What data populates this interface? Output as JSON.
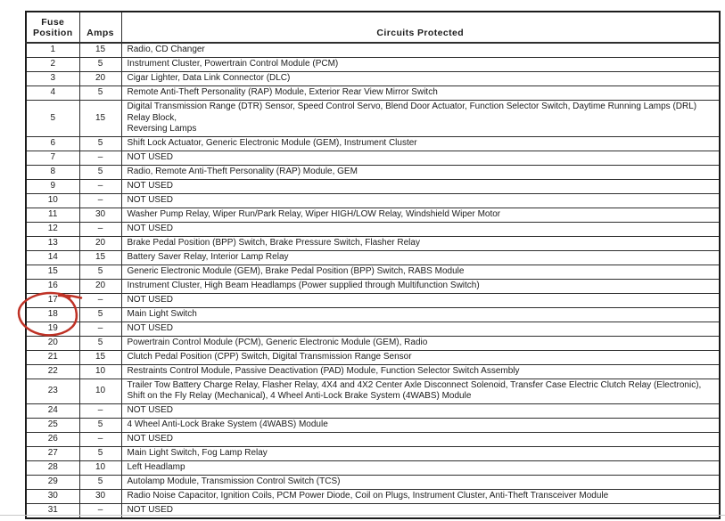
{
  "table": {
    "headers": {
      "fuse_position": "Fuse Position",
      "amps": "Amps",
      "circuits_protected": "Circuits Protected"
    },
    "rows": [
      {
        "position": "1",
        "amps": "15",
        "circuits": "Radio, CD Changer"
      },
      {
        "position": "2",
        "amps": "5",
        "circuits": "Instrument Cluster, Powertrain Control Module (PCM)"
      },
      {
        "position": "3",
        "amps": "20",
        "circuits": "Cigar Lighter, Data Link Connector (DLC)"
      },
      {
        "position": "4",
        "amps": "5",
        "circuits": "Remote Anti-Theft Personality (RAP) Module, Exterior Rear View Mirror Switch"
      },
      {
        "position": "5",
        "amps": "15",
        "circuits": "Digital Transmission Range (DTR) Sensor, Speed Control Servo, Blend Door Actuator, Function Selector Switch, Daytime Running Lamps (DRL) Relay Block,\nReversing Lamps"
      },
      {
        "position": "6",
        "amps": "5",
        "circuits": "Shift Lock Actuator, Generic Electronic Module (GEM), Instrument Cluster"
      },
      {
        "position": "7",
        "amps": "–",
        "circuits": "NOT USED"
      },
      {
        "position": "8",
        "amps": "5",
        "circuits": "Radio, Remote Anti-Theft Personality (RAP) Module, GEM"
      },
      {
        "position": "9",
        "amps": "–",
        "circuits": "NOT USED"
      },
      {
        "position": "10",
        "amps": "–",
        "circuits": "NOT USED"
      },
      {
        "position": "11",
        "amps": "30",
        "circuits": "Washer Pump Relay, Wiper Run/Park Relay, Wiper HIGH/LOW Relay, Windshield Wiper Motor"
      },
      {
        "position": "12",
        "amps": "–",
        "circuits": "NOT USED"
      },
      {
        "position": "13",
        "amps": "20",
        "circuits": "Brake Pedal Position (BPP) Switch, Brake Pressure Switch, Flasher Relay"
      },
      {
        "position": "14",
        "amps": "15",
        "circuits": "Battery Saver Relay, Interior Lamp Relay"
      },
      {
        "position": "15",
        "amps": "5",
        "circuits": "Generic Electronic Module (GEM), Brake Pedal Position (BPP) Switch, RABS Module"
      },
      {
        "position": "16",
        "amps": "20",
        "circuits": "Instrument Cluster, High Beam Headlamps (Power supplied through Multifunction Switch)"
      },
      {
        "position": "17",
        "amps": "–",
        "circuits": "NOT USED"
      },
      {
        "position": "18",
        "amps": "5",
        "circuits": "Main Light Switch"
      },
      {
        "position": "19",
        "amps": "–",
        "circuits": "NOT USED"
      },
      {
        "position": "20",
        "amps": "5",
        "circuits": "Powertrain Control Module (PCM), Generic Electronic Module (GEM), Radio"
      },
      {
        "position": "21",
        "amps": "15",
        "circuits": "Clutch Pedal Position (CPP) Switch, Digital Transmission Range Sensor"
      },
      {
        "position": "22",
        "amps": "10",
        "circuits": "Restraints Control Module, Passive Deactivation (PAD) Module, Function Selector Switch Assembly"
      },
      {
        "position": "23",
        "amps": "10",
        "circuits": "Trailer Tow Battery Charge Relay, Flasher Relay, 4X4 and 4X2 Center Axle Disconnect Solenoid, Transfer Case Electric Clutch Relay (Electronic),\nShift on the Fly Relay (Mechanical), 4 Wheel Anti-Lock Brake System (4WABS) Module"
      },
      {
        "position": "24",
        "amps": "–",
        "circuits": "NOT USED"
      },
      {
        "position": "25",
        "amps": "5",
        "circuits": "4 Wheel Anti-Lock Brake System (4WABS) Module"
      },
      {
        "position": "26",
        "amps": "–",
        "circuits": "NOT USED"
      },
      {
        "position": "27",
        "amps": "5",
        "circuits": "Main Light Switch, Fog Lamp Relay"
      },
      {
        "position": "28",
        "amps": "10",
        "circuits": "Left Headlamp"
      },
      {
        "position": "29",
        "amps": "5",
        "circuits": "Autolamp Module, Transmission Control Switch (TCS)"
      },
      {
        "position": "30",
        "amps": "30",
        "circuits": "Radio Noise Capacitor, Ignition Coils, PCM Power Diode, Coil on Plugs, Instrument Cluster, Anti-Theft Transceiver Module"
      },
      {
        "position": "31",
        "amps": "–",
        "circuits": "NOT USED"
      }
    ]
  },
  "annotation": {
    "shape": "hand-drawn-circle",
    "highlighted_fuse_position": "18",
    "color": "#bf3226"
  }
}
